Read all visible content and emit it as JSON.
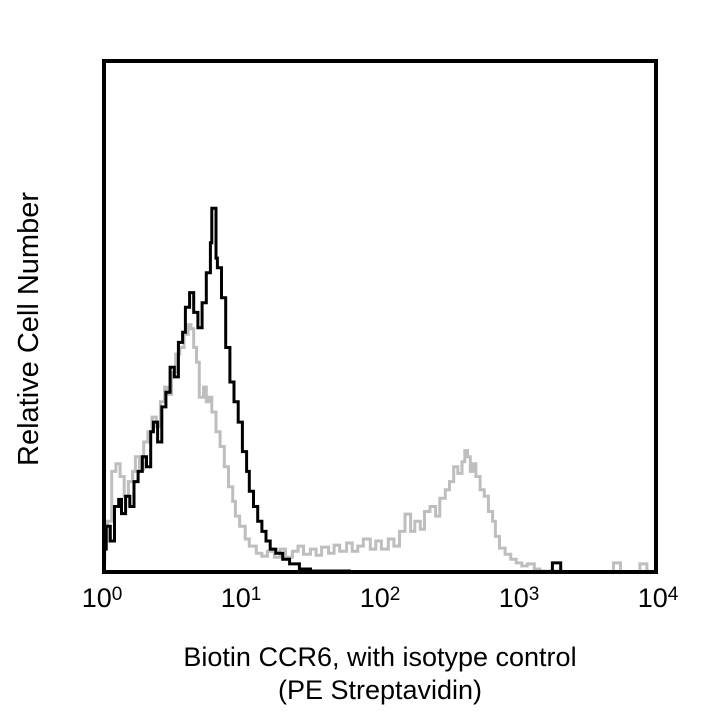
{
  "figure": {
    "ylabel": "Relative Cell Number",
    "caption_line1": "Biotin CCR6, with isotype control",
    "caption_line2": "(PE Streptavidin)"
  },
  "chart_data": {
    "type": "line",
    "subtype": "flow-cytometry-histogram-overlay",
    "title": "Biotin CCR6, with isotype control (PE Streptavidin)",
    "xlabel": "Biotin CCR6, with isotype control (PE Streptavidin)",
    "ylabel": "Relative Cell Number",
    "x_scale": "log10",
    "xlim": [
      1,
      10000
    ],
    "xlim_decades": [
      0,
      4
    ],
    "ylim_relative": [
      0,
      100
    ],
    "grid": false,
    "legend": "none",
    "y_ticks": "none",
    "x_ticks": [
      {
        "base": "10",
        "exp": "0",
        "decade": 0
      },
      {
        "base": "10",
        "exp": "1",
        "decade": 1
      },
      {
        "base": "10",
        "exp": "2",
        "decade": 2
      },
      {
        "base": "10",
        "exp": "3",
        "decade": 3
      },
      {
        "base": "10",
        "exp": "4",
        "decade": 4
      }
    ],
    "series": [
      {
        "name": "Biotin CCR6 (PE Streptavidin)",
        "role": "stained-sample",
        "color": "#bebebe",
        "peaks_x_approx": [
          4.5,
          450
        ],
        "points_decade_heightpct": [
          [
            0.0,
            2.2
          ],
          [
            0.02,
            6.1
          ],
          [
            0.04,
            10.0
          ],
          [
            0.07,
            19.8
          ],
          [
            0.1,
            21.3
          ],
          [
            0.13,
            18.8
          ],
          [
            0.16,
            14.9
          ],
          [
            0.19,
            17.8
          ],
          [
            0.22,
            19.8
          ],
          [
            0.24,
            22.7
          ],
          [
            0.27,
            20.2
          ],
          [
            0.3,
            25.6
          ],
          [
            0.33,
            27.6
          ],
          [
            0.36,
            30.5
          ],
          [
            0.39,
            28.6
          ],
          [
            0.42,
            33.5
          ],
          [
            0.45,
            36.4
          ],
          [
            0.47,
            35.0
          ],
          [
            0.5,
            39.3
          ],
          [
            0.53,
            42.9
          ],
          [
            0.56,
            44.2
          ],
          [
            0.59,
            46.8
          ],
          [
            0.62,
            48.7
          ],
          [
            0.64,
            47.9
          ],
          [
            0.66,
            44.2
          ],
          [
            0.68,
            41.3
          ],
          [
            0.7,
            34.4
          ],
          [
            0.73,
            36.4
          ],
          [
            0.75,
            33.5
          ],
          [
            0.77,
            34.4
          ],
          [
            0.79,
            31.5
          ],
          [
            0.82,
            27.6
          ],
          [
            0.85,
            24.7
          ],
          [
            0.88,
            20.7
          ],
          [
            0.91,
            16.8
          ],
          [
            0.94,
            13.9
          ],
          [
            0.96,
            11.0
          ],
          [
            0.99,
            9.0
          ],
          [
            1.03,
            6.5
          ],
          [
            1.06,
            5.1
          ],
          [
            1.11,
            3.7
          ],
          [
            1.15,
            3.1
          ],
          [
            1.19,
            4.1
          ],
          [
            1.24,
            2.9
          ],
          [
            1.28,
            4.5
          ],
          [
            1.32,
            2.9
          ],
          [
            1.37,
            4.1
          ],
          [
            1.41,
            5.1
          ],
          [
            1.45,
            3.5
          ],
          [
            1.5,
            4.5
          ],
          [
            1.54,
            3.3
          ],
          [
            1.58,
            4.9
          ],
          [
            1.63,
            3.7
          ],
          [
            1.67,
            5.3
          ],
          [
            1.71,
            4.1
          ],
          [
            1.76,
            5.7
          ],
          [
            1.8,
            4.1
          ],
          [
            1.84,
            5.1
          ],
          [
            1.88,
            6.5
          ],
          [
            1.93,
            4.5
          ],
          [
            1.97,
            6.1
          ],
          [
            2.01,
            4.5
          ],
          [
            2.06,
            6.5
          ],
          [
            2.1,
            5.1
          ],
          [
            2.14,
            8.0
          ],
          [
            2.18,
            11.4
          ],
          [
            2.22,
            8.0
          ],
          [
            2.25,
            10.0
          ],
          [
            2.29,
            8.4
          ],
          [
            2.32,
            11.9
          ],
          [
            2.36,
            12.9
          ],
          [
            2.4,
            11.0
          ],
          [
            2.43,
            14.5
          ],
          [
            2.47,
            16.2
          ],
          [
            2.5,
            17.8
          ],
          [
            2.53,
            20.7
          ],
          [
            2.56,
            19.4
          ],
          [
            2.59,
            21.7
          ],
          [
            2.61,
            23.9
          ],
          [
            2.63,
            22.7
          ],
          [
            2.65,
            19.8
          ],
          [
            2.67,
            21.3
          ],
          [
            2.69,
            18.8
          ],
          [
            2.72,
            16.2
          ],
          [
            2.75,
            14.9
          ],
          [
            2.78,
            11.9
          ],
          [
            2.81,
            10.0
          ],
          [
            2.83,
            7.0
          ],
          [
            2.86,
            4.7
          ],
          [
            2.9,
            3.5
          ],
          [
            2.94,
            2.5
          ],
          [
            2.98,
            1.8
          ],
          [
            3.02,
            1.2
          ],
          [
            3.06,
            1.6
          ],
          [
            3.11,
            0.6
          ],
          [
            3.15,
            0.2
          ],
          [
            3.3,
            0
          ],
          [
            3.65,
            0
          ],
          [
            3.68,
            1.8
          ],
          [
            3.7,
            1.8
          ],
          [
            3.73,
            0
          ],
          [
            3.85,
            0
          ],
          [
            3.87,
            1.6
          ],
          [
            3.9,
            1.6
          ],
          [
            3.92,
            0
          ],
          [
            4.0,
            0
          ]
        ]
      },
      {
        "name": "Isotype control",
        "role": "negative-control",
        "color": "#000000",
        "peaks_x_approx": [
          6
        ],
        "points_decade_heightpct": [
          [
            0.0,
            4.5
          ],
          [
            0.03,
            9.0
          ],
          [
            0.06,
            6.1
          ],
          [
            0.09,
            12.9
          ],
          [
            0.12,
            14.3
          ],
          [
            0.14,
            11.5
          ],
          [
            0.17,
            14.9
          ],
          [
            0.2,
            12.9
          ],
          [
            0.23,
            17.8
          ],
          [
            0.26,
            19.8
          ],
          [
            0.29,
            22.7
          ],
          [
            0.32,
            20.7
          ],
          [
            0.35,
            27.6
          ],
          [
            0.37,
            29.5
          ],
          [
            0.4,
            25.6
          ],
          [
            0.43,
            32.5
          ],
          [
            0.46,
            35.4
          ],
          [
            0.49,
            40.3
          ],
          [
            0.52,
            38.4
          ],
          [
            0.55,
            45.2
          ],
          [
            0.58,
            47.2
          ],
          [
            0.6,
            52.1
          ],
          [
            0.63,
            55.0
          ],
          [
            0.66,
            51.1
          ],
          [
            0.69,
            48.1
          ],
          [
            0.72,
            53.0
          ],
          [
            0.75,
            58.9
          ],
          [
            0.78,
            64.8
          ],
          [
            0.79,
            71.6
          ],
          [
            0.81,
            71.6
          ],
          [
            0.82,
            61.8
          ],
          [
            0.83,
            59.9
          ],
          [
            0.86,
            54.0
          ],
          [
            0.89,
            44.2
          ],
          [
            0.92,
            37.4
          ],
          [
            0.95,
            33.5
          ],
          [
            0.98,
            29.5
          ],
          [
            1.01,
            23.7
          ],
          [
            1.04,
            19.8
          ],
          [
            1.06,
            15.9
          ],
          [
            1.09,
            12.9
          ],
          [
            1.12,
            10.0
          ],
          [
            1.15,
            8.0
          ],
          [
            1.18,
            6.1
          ],
          [
            1.21,
            4.5
          ],
          [
            1.25,
            3.7
          ],
          [
            1.3,
            2.5
          ],
          [
            1.35,
            1.6
          ],
          [
            1.42,
            0.6
          ],
          [
            1.5,
            0.2
          ],
          [
            1.78,
            0
          ],
          [
            3.22,
            0
          ],
          [
            3.24,
            1.8
          ],
          [
            3.28,
            1.8
          ],
          [
            3.3,
            0
          ],
          [
            4.0,
            0
          ]
        ]
      }
    ],
    "plot_geometry_note": "black trace drawn over gray; both rise from left plot border"
  }
}
